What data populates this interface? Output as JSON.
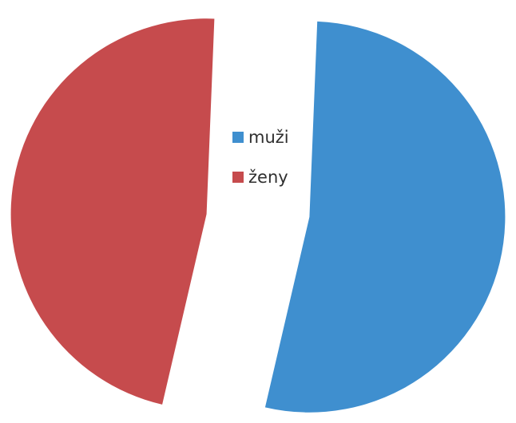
{
  "chart_data": {
    "type": "pie",
    "categories": [
      "muži",
      "ženy"
    ],
    "values": [
      53,
      47
    ],
    "colors": [
      "#3f8fcf",
      "#c64b4d"
    ],
    "legend": "center",
    "style": "exploded"
  }
}
